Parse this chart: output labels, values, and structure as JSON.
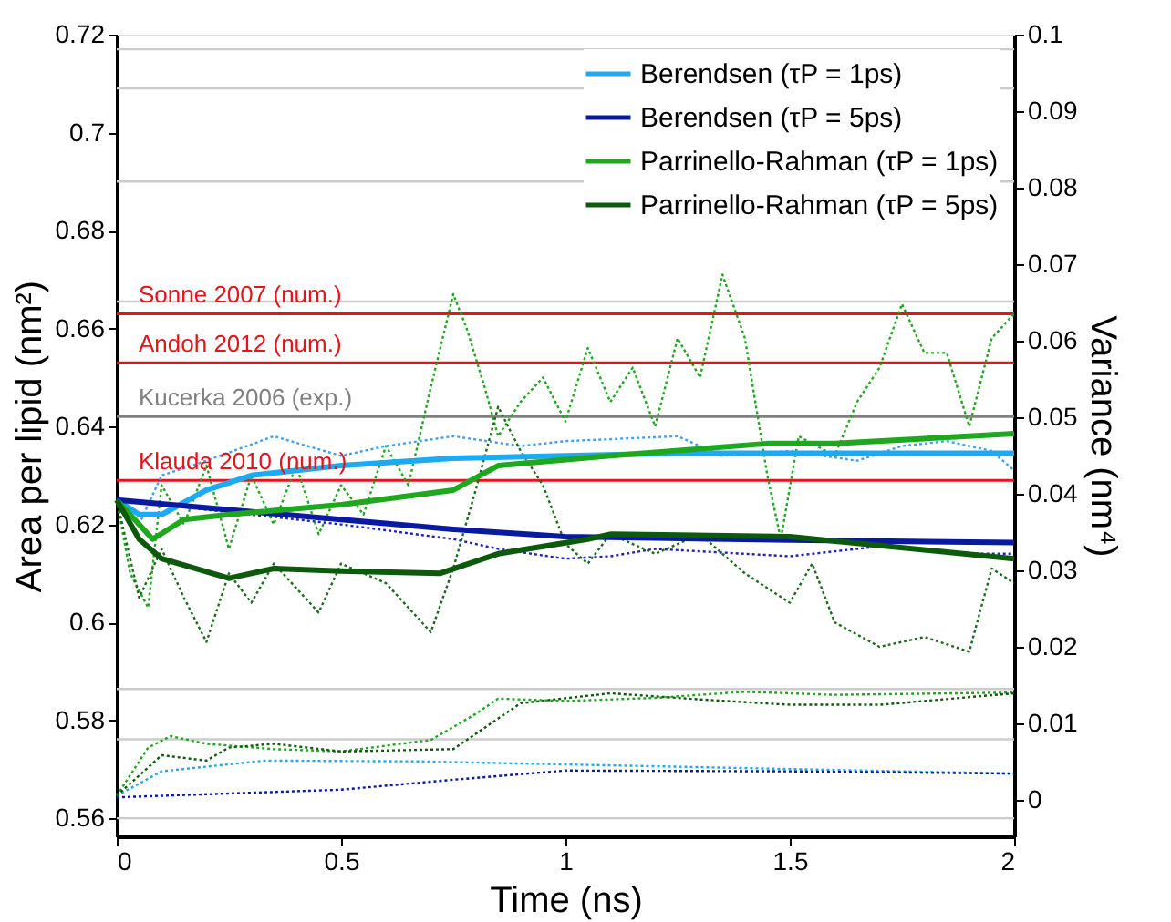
{
  "chart_data": {
    "type": "line",
    "xlabel": "Time (ns)",
    "ylabel": "Area per lipid (nm²)",
    "y2label": "Variance (nm⁴)",
    "xlim": [
      0,
      2
    ],
    "xticks": [
      0,
      0.5,
      1,
      1.5,
      2
    ],
    "ylim": [
      0.5563,
      0.72
    ],
    "yticks": [
      0.56,
      0.58,
      0.6,
      0.62,
      0.64,
      0.66,
      0.68,
      0.7,
      0.72
    ],
    "y2lim": [
      -0.0048,
      0.1
    ],
    "y2ticks": [
      0,
      0.01,
      0.02,
      0.03,
      0.04,
      0.05,
      0.06,
      0.07,
      0.08,
      0.09,
      0.1
    ],
    "legend": "top right",
    "grid": false,
    "ref_lines": [
      {
        "axis": "y",
        "value": 0.717,
        "color": "#cccccc"
      },
      {
        "axis": "y",
        "value": 0.709,
        "color": "#cccccc"
      },
      {
        "axis": "y",
        "value": 0.69,
        "color": "#cccccc"
      },
      {
        "axis": "y",
        "value": 0.6655,
        "color": "#cccccc"
      },
      {
        "axis": "y",
        "value": 0.5864,
        "color": "#cccccc"
      },
      {
        "axis": "y",
        "value": 0.5761,
        "color": "#cccccc"
      },
      {
        "axis": "y",
        "value": 0.56,
        "color": "#cccccc"
      },
      {
        "axis": "y",
        "value": 0.663,
        "label": "Sonne 2007 (num.)",
        "color": "#e3141b"
      },
      {
        "axis": "y",
        "value": 0.653,
        "label": "Andoh 2012 (num.)",
        "color": "#e3141b"
      },
      {
        "axis": "y",
        "value": 0.642,
        "label": "Kucerka 2006 (exp.)",
        "color": "#808080"
      },
      {
        "axis": "y",
        "value": 0.629,
        "label": "Klauda 2010 (num.)",
        "color": "#e3141b"
      }
    ],
    "series": [
      {
        "color": "#3fa0f5",
        "line_style": "dotted",
        "x": [
          0,
          0.05,
          0.1,
          0.2,
          0.35,
          0.5,
          0.6,
          0.75,
          0.9,
          1.0,
          1.25,
          1.35,
          1.5,
          1.65,
          1.75,
          1.85,
          1.95,
          2
        ],
        "values": [
          0.625,
          0.62,
          0.63,
          0.633,
          0.638,
          0.634,
          0.636,
          0.638,
          0.636,
          0.637,
          0.638,
          0.634,
          0.635,
          0.633,
          0.636,
          0.637,
          0.635,
          0.631
        ]
      },
      {
        "color": "#2020c0",
        "line_style": "dotted",
        "x": [
          0,
          0.3,
          0.5,
          0.75,
          0.85,
          1.0,
          1.1,
          1.2,
          1.5,
          1.7,
          1.9,
          2
        ],
        "values": [
          0.625,
          0.622,
          0.62,
          0.617,
          0.615,
          0.613,
          0.6135,
          0.615,
          0.6135,
          0.6155,
          0.614,
          0.614
        ]
      },
      {
        "color": "#1fa81f",
        "line_style": "dotted",
        "x": [
          0,
          0.03,
          0.07,
          0.1,
          0.15,
          0.2,
          0.25,
          0.3,
          0.35,
          0.4,
          0.45,
          0.5,
          0.55,
          0.6,
          0.65,
          0.7,
          0.75,
          0.78,
          0.82,
          0.85,
          0.9,
          0.95,
          1.0,
          1.05,
          1.1,
          1.15,
          1.2,
          1.25,
          1.3,
          1.35,
          1.4,
          1.45,
          1.48,
          1.52,
          1.6,
          1.65,
          1.7,
          1.75,
          1.8,
          1.85,
          1.9,
          1.95,
          2
        ],
        "values": [
          0.625,
          0.61,
          0.603,
          0.628,
          0.62,
          0.632,
          0.615,
          0.63,
          0.62,
          0.632,
          0.618,
          0.628,
          0.622,
          0.636,
          0.628,
          0.648,
          0.667,
          0.66,
          0.648,
          0.638,
          0.645,
          0.65,
          0.641,
          0.656,
          0.645,
          0.652,
          0.64,
          0.658,
          0.65,
          0.671,
          0.658,
          0.63,
          0.617,
          0.638,
          0.634,
          0.645,
          0.652,
          0.665,
          0.655,
          0.655,
          0.64,
          0.658,
          0.663
        ]
      },
      {
        "color": "#1d6a1d",
        "line_style": "dotted",
        "x": [
          0,
          0.05,
          0.1,
          0.15,
          0.2,
          0.25,
          0.3,
          0.35,
          0.45,
          0.5,
          0.6,
          0.7,
          0.75,
          0.8,
          0.85,
          0.9,
          0.95,
          1.0,
          1.05,
          1.1,
          1.2,
          1.3,
          1.4,
          1.5,
          1.55,
          1.6,
          1.7,
          1.8,
          1.9,
          1.95,
          2
        ],
        "values": [
          0.625,
          0.605,
          0.615,
          0.605,
          0.596,
          0.61,
          0.604,
          0.612,
          0.602,
          0.612,
          0.608,
          0.598,
          0.611,
          0.627,
          0.644,
          0.635,
          0.628,
          0.616,
          0.612,
          0.618,
          0.614,
          0.618,
          0.61,
          0.604,
          0.612,
          0.6,
          0.595,
          0.597,
          0.594,
          0.611,
          0.608
        ]
      },
      {
        "name": "Berendsen (τP = 1ps)",
        "color": "#1eaaf0",
        "line_style": "solid",
        "x": [
          0,
          0.05,
          0.1,
          0.2,
          0.3,
          0.5,
          0.75,
          1,
          1.25,
          1.5,
          1.75,
          2
        ],
        "values": [
          0.625,
          0.622,
          0.622,
          0.627,
          0.63,
          0.632,
          0.6335,
          0.634,
          0.6345,
          0.6345,
          0.6345,
          0.6345
        ]
      },
      {
        "name": "Berendsen (τP = 5ps)",
        "color": "#0a1aa0",
        "line_style": "solid",
        "x": [
          0,
          0.25,
          0.5,
          0.75,
          1,
          1.5,
          2
        ],
        "values": [
          0.625,
          0.623,
          0.621,
          0.619,
          0.6175,
          0.6168,
          0.6163
        ]
      },
      {
        "name": "Parrinello-Rahman (τP = 1ps)",
        "color": "#1fa81f",
        "line_style": "solid",
        "x": [
          0,
          0.08,
          0.15,
          0.25,
          0.5,
          0.75,
          0.85,
          1.1,
          1.45,
          1.6,
          2
        ],
        "values": [
          0.625,
          0.617,
          0.621,
          0.622,
          0.624,
          0.627,
          0.632,
          0.634,
          0.6365,
          0.6365,
          0.6385
        ]
      },
      {
        "name": "Parrinello-Rahman (τP = 5ps)",
        "color": "#0d5a0d",
        "line_style": "solid",
        "x": [
          0,
          0.05,
          0.1,
          0.25,
          0.35,
          0.5,
          0.72,
          0.85,
          1.05,
          1.1,
          1.5,
          2
        ],
        "values": [
          0.625,
          0.617,
          0.613,
          0.609,
          0.611,
          0.6105,
          0.61,
          0.614,
          0.617,
          0.618,
          0.6175,
          0.613
        ]
      },
      {
        "axis": "y2",
        "color": "#1eaaf0",
        "line_style": "dotted",
        "x": [
          0,
          0.1,
          0.33,
          0.67,
          1.0,
          2
        ],
        "values": [
          0.0005,
          0.0037,
          0.0051,
          0.005,
          0.0046,
          0.0034
        ]
      },
      {
        "axis": "y2",
        "color": "#0a1aa0",
        "line_style": "dotted",
        "x": [
          0,
          0.5,
          0.75,
          1.0,
          1.5,
          2
        ],
        "values": [
          0.0003,
          0.0013,
          0.0026,
          0.0038,
          0.0037,
          0.0034
        ]
      },
      {
        "axis": "y2",
        "color": "#1fa81f",
        "line_style": "dotted",
        "x": [
          0,
          0.07,
          0.12,
          0.2,
          0.35,
          0.5,
          0.7,
          0.8,
          0.85,
          1.0,
          1.2,
          1.4,
          1.6,
          2
        ],
        "values": [
          0.0005,
          0.0068,
          0.0083,
          0.0073,
          0.0066,
          0.0063,
          0.0078,
          0.0112,
          0.0132,
          0.0129,
          0.0133,
          0.0141,
          0.0137,
          0.014
        ]
      },
      {
        "axis": "y2",
        "color": "#0d5a0d",
        "line_style": "dotted",
        "x": [
          0,
          0.1,
          0.2,
          0.25,
          0.35,
          0.5,
          0.75,
          0.9,
          1.1,
          1.3,
          1.5,
          1.7,
          2
        ],
        "values": [
          0.0005,
          0.0058,
          0.0051,
          0.0068,
          0.0073,
          0.0063,
          0.0066,
          0.0126,
          0.0139,
          0.0131,
          0.0124,
          0.0124,
          0.0139
        ]
      }
    ]
  }
}
